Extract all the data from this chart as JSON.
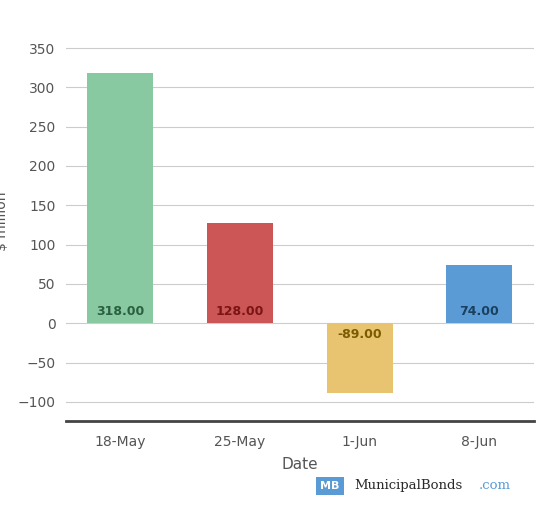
{
  "categories": [
    "18-May",
    "25-May",
    "1-Jun",
    "8-Jun"
  ],
  "values": [
    318.0,
    128.0,
    -89.0,
    74.0
  ],
  "bar_colors": [
    "#88c9a1",
    "#cc5555",
    "#e8c470",
    "#5b9bd5"
  ],
  "label_colors": [
    "#2a6040",
    "#7a1515",
    "#7a5c00",
    "#1a4060"
  ],
  "xlabel": "Date",
  "ylabel": "$ million",
  "ylim": [
    -125,
    385
  ],
  "yticks": [
    -100,
    -50,
    0,
    50,
    100,
    150,
    200,
    250,
    300,
    350
  ],
  "background_color": "#ffffff",
  "grid_color": "#cccccc",
  "watermark_box_color": "#5b9bd5",
  "bar_width": 0.55
}
